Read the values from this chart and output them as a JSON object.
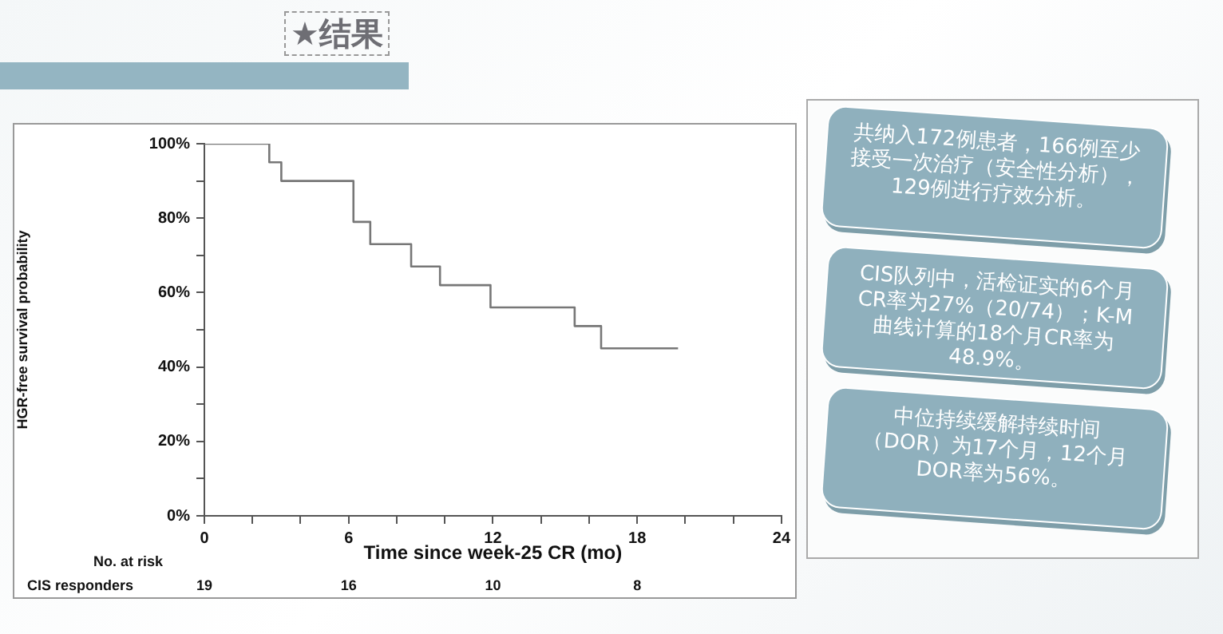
{
  "chart_data": [
    {
      "type": "step",
      "title": "★结果",
      "xlabel": "Time since week-25 CR (mo)",
      "ylabel": "HGR-free survival probability",
      "x": [
        0,
        2.7,
        3.2,
        6.2,
        6.9,
        8.6,
        9.8,
        11.9,
        15.4,
        16.5,
        19.7
      ],
      "series": [
        {
          "color": "#777777",
          "values": [
            100,
            95,
            90,
            79,
            73,
            67,
            62,
            56,
            51,
            45,
            45
          ]
        }
      ],
      "xlim": [
        0,
        24
      ],
      "xticks": [
        0,
        {
          "value": 2,
          "label": null
        },
        {
          "value": 4,
          "label": null
        },
        6,
        {
          "value": 8,
          "label": null
        },
        {
          "value": 10,
          "label": null
        },
        12,
        {
          "value": 14,
          "label": null
        },
        {
          "value": 16,
          "label": null
        },
        18,
        {
          "value": 20,
          "label": null
        },
        {
          "value": 22,
          "label": null
        },
        24
      ],
      "ylim": [
        0,
        100
      ],
      "yticks": [
        {
          "value": 0,
          "label": "0%"
        },
        {
          "value": 10,
          "label": null
        },
        {
          "value": 20,
          "label": "20%"
        },
        {
          "value": 30,
          "label": null
        },
        {
          "value": 40,
          "label": "40%"
        },
        {
          "value": 50,
          "label": null
        },
        {
          "value": 60,
          "label": "60%"
        },
        {
          "value": 70,
          "label": null
        },
        {
          "value": 80,
          "label": "80%"
        },
        {
          "value": 90,
          "label": null
        },
        {
          "value": 100,
          "label": "100%"
        }
      ],
      "grid": false,
      "legend": false,
      "marker": "none",
      "line_style": "solid",
      "annotations": [
        "No. at risk",
        "CIS responders",
        "19",
        "16",
        "10",
        "8"
      ]
    },
    {
      "type": "other",
      "annotations": [
        "共纳入172例患者，166例至少接受一次治疗（安全性分析），129例进行疗效分析。",
        "CIS队列中，活检证实的6个月CR率为27%（20/74）；K-M曲线计算的18个月CR率为48.9%。",
        "中位持续缓解持续时间（DOR）为17个月，12个月DOR率为56%。"
      ]
    }
  ]
}
